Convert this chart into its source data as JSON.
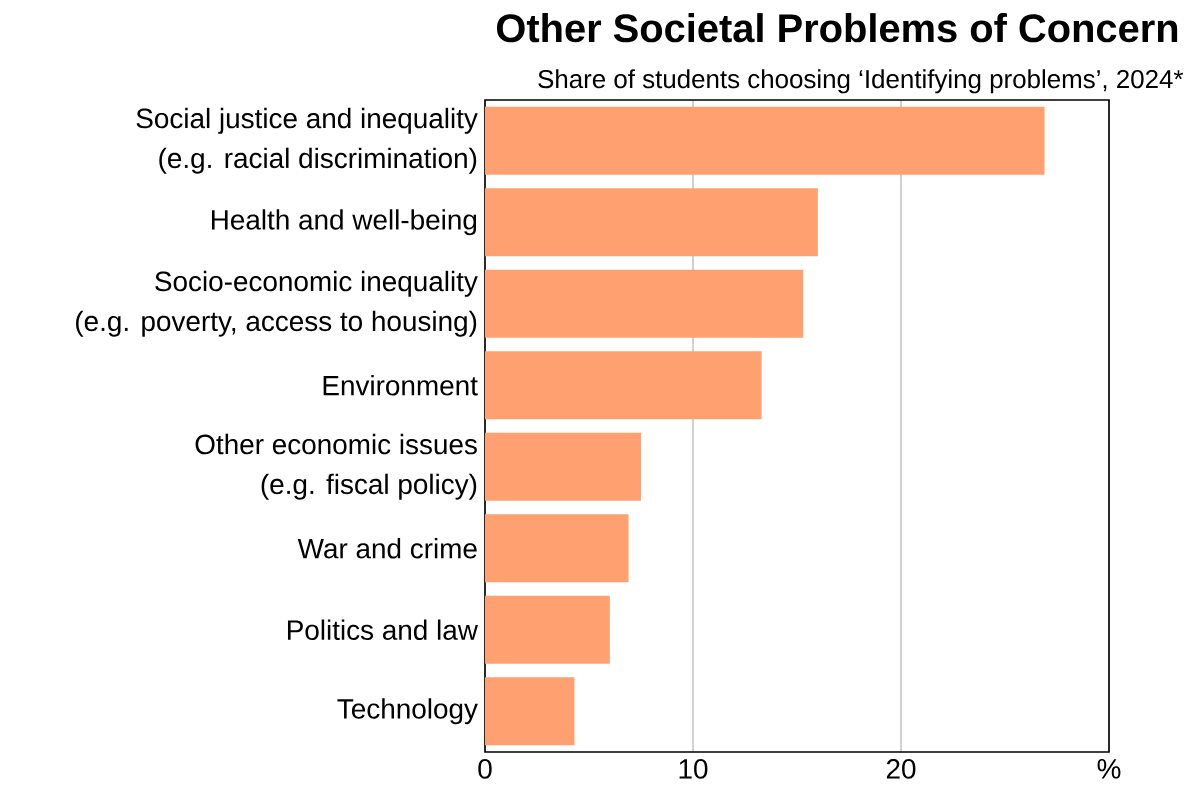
{
  "chart_data": {
    "type": "bar",
    "orientation": "horizontal",
    "title": "Other Societal Problems of Concern",
    "subtitle": "Share of students choosing ‘Identifying problems’, 2024*",
    "categories": [
      "Social justice and inequality\n(e.g. racial discrimination)",
      "Health and well-being",
      "Socio-economic inequality\n(e.g. poverty, access to housing)",
      "Environment",
      "Other economic issues\n(e.g. fiscal policy)",
      "War and crime",
      "Politics and law",
      "Technology"
    ],
    "values": [
      26.9,
      16.0,
      15.3,
      13.3,
      7.5,
      6.9,
      6.0,
      4.3
    ],
    "color": "#ffa070",
    "xlim": [
      0,
      30
    ],
    "xticks": [
      0,
      10,
      20,
      {
        "value": 30,
        "label": "%"
      }
    ],
    "grid": "x"
  }
}
